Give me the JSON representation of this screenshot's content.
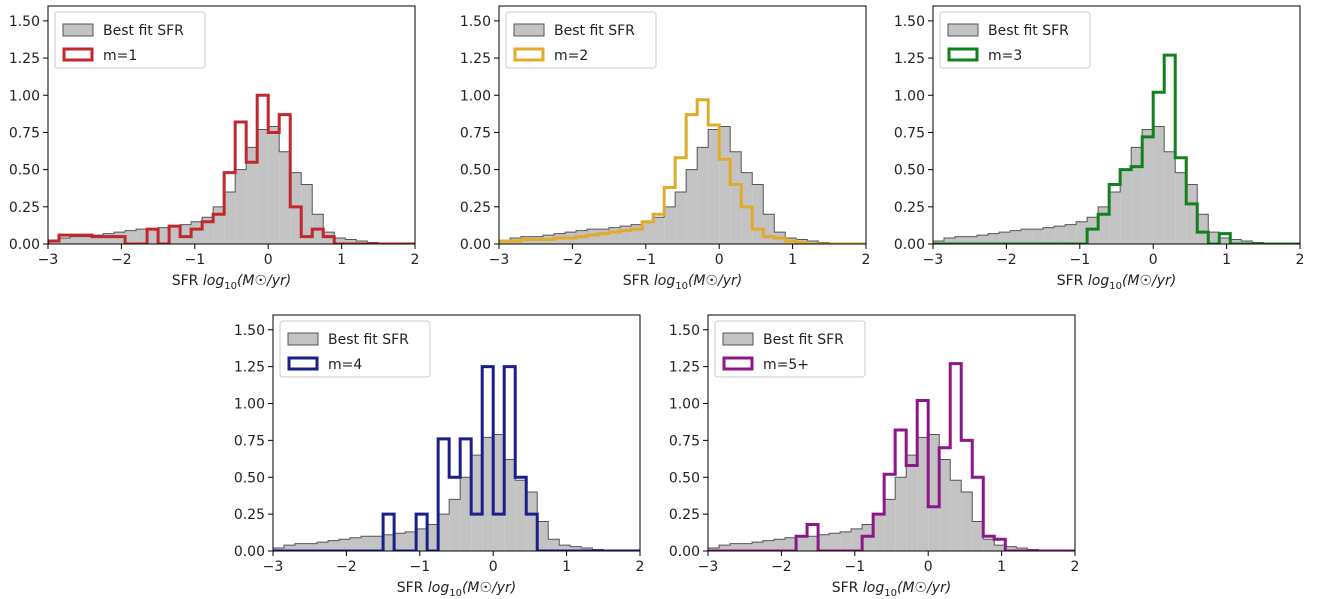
{
  "chart_data": [
    {
      "type": "histogram",
      "xlabel": "SFR log10(M☉/yr)",
      "xlim": [
        -3,
        2
      ],
      "ylim": [
        0,
        1.6
      ],
      "xticks": [
        "−3",
        "−2",
        "−1",
        "0",
        "1",
        "2"
      ],
      "yticks": [
        "0.00",
        "0.25",
        "0.50",
        "0.75",
        "1.00",
        "1.25",
        "1.50"
      ],
      "legend_position": "top-left",
      "bin_width": 0.15,
      "bin_start": -3.0,
      "background": {
        "name": "Best fit SFR",
        "values": [
          0.02,
          0.04,
          0.05,
          0.05,
          0.06,
          0.07,
          0.08,
          0.09,
          0.1,
          0.1,
          0.11,
          0.12,
          0.13,
          0.15,
          0.18,
          0.25,
          0.35,
          0.5,
          0.65,
          0.77,
          0.79,
          0.62,
          0.48,
          0.4,
          0.2,
          0.08,
          0.04,
          0.03,
          0.02,
          0.01,
          0.0,
          0.0,
          0.0,
          0.0
        ]
      },
      "series": [
        {
          "name": "m=1",
          "color": "#c0282d",
          "values": [
            0.02,
            0.06,
            0.06,
            0.06,
            0.05,
            0.05,
            0.05,
            0.0,
            0.0,
            0.1,
            0.0,
            0.12,
            0.05,
            0.1,
            0.15,
            0.2,
            0.48,
            0.82,
            0.55,
            1.0,
            0.75,
            0.87,
            0.25,
            0.05,
            0.1,
            0.05,
            0.0,
            0.0,
            0.0,
            0.0,
            0.0,
            0.0,
            0.0,
            0.0
          ]
        }
      ]
    },
    {
      "type": "histogram",
      "xlabel": "SFR log10(M☉/yr)",
      "xlim": [
        -3,
        2
      ],
      "ylim": [
        0,
        1.6
      ],
      "xticks": [
        "−3",
        "−2",
        "−1",
        "0",
        "1",
        "2"
      ],
      "yticks": [
        "0.00",
        "0.25",
        "0.50",
        "0.75",
        "1.00",
        "1.25",
        "1.50"
      ],
      "legend_position": "top-left",
      "bin_width": 0.15,
      "bin_start": -3.0,
      "background": {
        "name": "Best fit SFR",
        "values": [
          0.02,
          0.04,
          0.05,
          0.05,
          0.06,
          0.07,
          0.08,
          0.09,
          0.1,
          0.1,
          0.11,
          0.12,
          0.13,
          0.15,
          0.18,
          0.25,
          0.35,
          0.5,
          0.65,
          0.77,
          0.79,
          0.62,
          0.48,
          0.4,
          0.2,
          0.08,
          0.04,
          0.03,
          0.02,
          0.01,
          0.0,
          0.0,
          0.0,
          0.0
        ]
      },
      "series": [
        {
          "name": "m=2",
          "color": "#e0aa2b",
          "values": [
            0.02,
            0.02,
            0.03,
            0.03,
            0.03,
            0.04,
            0.04,
            0.05,
            0.06,
            0.07,
            0.08,
            0.09,
            0.1,
            0.15,
            0.2,
            0.38,
            0.58,
            0.87,
            0.97,
            0.8,
            0.57,
            0.4,
            0.25,
            0.1,
            0.05,
            0.04,
            0.02,
            0.01,
            0.0,
            0.0,
            0.0,
            0.0,
            0.0,
            0.0
          ]
        }
      ]
    },
    {
      "type": "histogram",
      "xlabel": "SFR log10(M☉/yr)",
      "xlim": [
        -3,
        2
      ],
      "ylim": [
        0,
        1.6
      ],
      "xticks": [
        "−3",
        "−2",
        "−1",
        "0",
        "1",
        "2"
      ],
      "yticks": [
        "0.00",
        "0.25",
        "0.50",
        "0.75",
        "1.00",
        "1.25",
        "1.50"
      ],
      "legend_position": "top-left",
      "bin_width": 0.15,
      "bin_start": -3.0,
      "background": {
        "name": "Best fit SFR",
        "values": [
          0.02,
          0.04,
          0.05,
          0.05,
          0.06,
          0.07,
          0.08,
          0.09,
          0.1,
          0.1,
          0.11,
          0.12,
          0.13,
          0.15,
          0.18,
          0.25,
          0.35,
          0.5,
          0.65,
          0.77,
          0.79,
          0.62,
          0.48,
          0.4,
          0.2,
          0.08,
          0.04,
          0.03,
          0.02,
          0.01,
          0.0,
          0.0,
          0.0,
          0.0
        ]
      },
      "series": [
        {
          "name": "m=3",
          "color": "#12801c",
          "values": [
            0.0,
            0.0,
            0.0,
            0.0,
            0.0,
            0.0,
            0.0,
            0.0,
            0.0,
            0.0,
            0.0,
            0.0,
            0.0,
            0.0,
            0.1,
            0.2,
            0.4,
            0.5,
            0.52,
            0.72,
            1.02,
            1.27,
            0.58,
            0.27,
            0.08,
            0.0,
            0.07,
            0.0,
            0.0,
            0.0,
            0.0,
            0.0,
            0.0,
            0.0
          ]
        }
      ]
    },
    {
      "type": "histogram",
      "xlabel": "SFR log10(M☉/yr)",
      "xlim": [
        -3,
        2
      ],
      "ylim": [
        0,
        1.6
      ],
      "xticks": [
        "−3",
        "−2",
        "−1",
        "0",
        "1",
        "2"
      ],
      "yticks": [
        "0.00",
        "0.25",
        "0.50",
        "0.75",
        "1.00",
        "1.25",
        "1.50"
      ],
      "legend_position": "top-left",
      "bin_width": 0.15,
      "bin_start": -3.0,
      "background": {
        "name": "Best fit SFR",
        "values": [
          0.02,
          0.04,
          0.05,
          0.05,
          0.06,
          0.07,
          0.08,
          0.09,
          0.1,
          0.1,
          0.11,
          0.12,
          0.13,
          0.15,
          0.18,
          0.25,
          0.35,
          0.5,
          0.65,
          0.77,
          0.79,
          0.62,
          0.48,
          0.4,
          0.2,
          0.08,
          0.04,
          0.03,
          0.02,
          0.01,
          0.0,
          0.0,
          0.0,
          0.0
        ]
      },
      "series": [
        {
          "name": "m=4",
          "color": "#1a1f8c",
          "values": [
            0.0,
            0.0,
            0.0,
            0.0,
            0.0,
            0.0,
            0.0,
            0.0,
            0.0,
            0.0,
            0.25,
            0.0,
            0.0,
            0.25,
            0.0,
            0.76,
            0.5,
            0.76,
            0.25,
            1.25,
            0.25,
            1.25,
            0.5,
            0.25,
            0.0,
            0.0,
            0.0,
            0.0,
            0.0,
            0.0,
            0.0,
            0.0,
            0.0,
            0.0
          ]
        }
      ]
    },
    {
      "type": "histogram",
      "xlabel": "SFR log10(M☉/yr)",
      "xlim": [
        -3,
        2
      ],
      "ylim": [
        0,
        1.6
      ],
      "xticks": [
        "−3",
        "−2",
        "−1",
        "0",
        "1",
        "2"
      ],
      "yticks": [
        "0.00",
        "0.25",
        "0.50",
        "0.75",
        "1.00",
        "1.25",
        "1.50"
      ],
      "legend_position": "top-left",
      "bin_width": 0.15,
      "bin_start": -3.0,
      "background": {
        "name": "Best fit SFR",
        "values": [
          0.02,
          0.04,
          0.05,
          0.05,
          0.06,
          0.07,
          0.08,
          0.09,
          0.1,
          0.1,
          0.11,
          0.12,
          0.13,
          0.15,
          0.18,
          0.25,
          0.35,
          0.5,
          0.65,
          0.77,
          0.79,
          0.62,
          0.48,
          0.4,
          0.2,
          0.08,
          0.04,
          0.03,
          0.02,
          0.01,
          0.0,
          0.0,
          0.0,
          0.0
        ]
      },
      "series": [
        {
          "name": "m=5+",
          "color": "#8c1789",
          "values": [
            0.0,
            0.0,
            0.0,
            0.0,
            0.0,
            0.0,
            0.0,
            0.0,
            0.1,
            0.18,
            0.0,
            0.0,
            0.0,
            0.0,
            0.1,
            0.25,
            0.52,
            0.82,
            0.58,
            1.02,
            0.3,
            0.7,
            1.27,
            0.75,
            0.5,
            0.1,
            0.08,
            0.0,
            0.0,
            0.0,
            0.0,
            0.0,
            0.0,
            0.0
          ]
        }
      ]
    }
  ]
}
